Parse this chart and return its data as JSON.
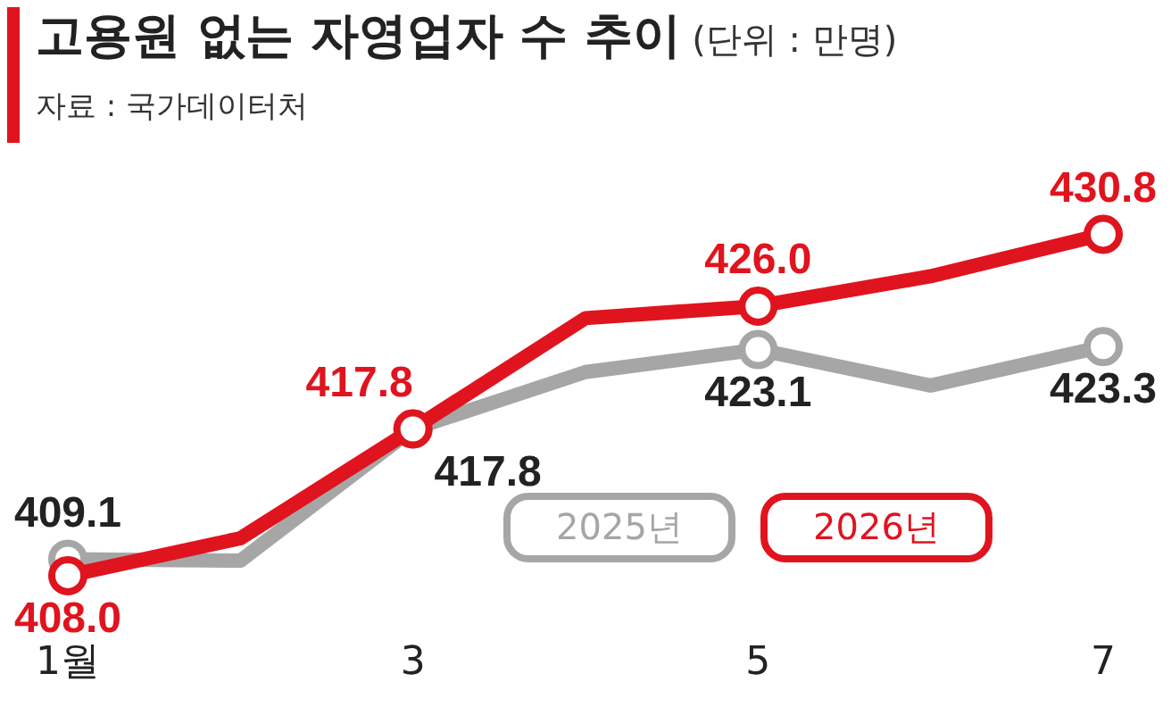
{
  "chart_data": {
    "type": "line",
    "title": "고용원 없는 자영업자 수 추이",
    "subtitle": "(단위 : 만명)",
    "annotations": [
      "자료 : 국가데이터처"
    ],
    "categories": [
      "1월",
      null,
      "3",
      null,
      "5",
      null,
      "7"
    ],
    "series": [
      {
        "name": "2025년",
        "color": "#a6a6a6",
        "values": [
          409.1,
          409.0,
          417.8,
          421.6,
          423.1,
          420.7,
          423.3
        ],
        "value_labels": [
          "409.1",
          null,
          "417.8",
          null,
          "423.1",
          null,
          "423.3"
        ]
      },
      {
        "name": "2026년",
        "color": "#e0141e",
        "values": [
          408.0,
          410.5,
          417.8,
          425.2,
          426.0,
          428.0,
          430.8
        ],
        "value_labels": [
          "408.0",
          null,
          "417.8",
          null,
          "426.0",
          null,
          "430.8"
        ]
      }
    ],
    "tick_labels": "x",
    "grid": false,
    "legend": "bottom right",
    "marker": "circle",
    "line_style": "solid"
  }
}
